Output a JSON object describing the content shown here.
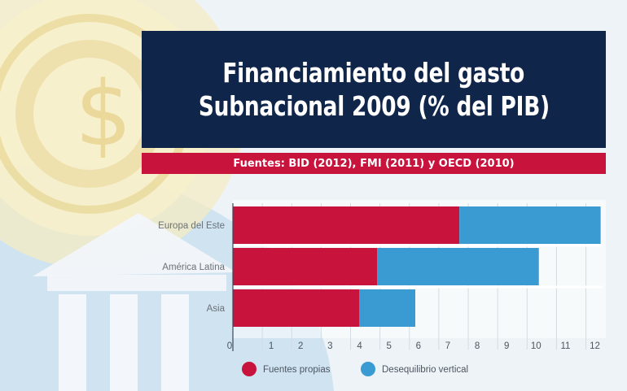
{
  "title": {
    "line1": "Financiamiento del gasto",
    "line2": "Subnacional  2009 (% del PIB)"
  },
  "source": "Fuentes: BID (2012), FMI (2011) y OECD (2010)",
  "colors": {
    "title_bg": "#10254a",
    "source_bg": "#c8143c",
    "series_own": "#c8143c",
    "series_vertical": "#3a9ad2"
  },
  "chart_data": {
    "type": "bar",
    "orientation": "horizontal",
    "stacked": true,
    "categories": [
      "Europa del Este",
      "América Latina",
      "Asia"
    ],
    "series": [
      {
        "name": "Fuentes propias",
        "values": [
          7.7,
          4.9,
          4.3
        ],
        "color": "#c8143c"
      },
      {
        "name": "Desequilibrio vertical",
        "values": [
          4.8,
          5.5,
          1.9
        ],
        "color": "#3a9ad2"
      }
    ],
    "xlim": [
      0,
      12.4
    ],
    "xticks": [
      0,
      1,
      2,
      3,
      4,
      5,
      6,
      7,
      8,
      9,
      10,
      11,
      12
    ],
    "grid": true,
    "legend_position": "bottom"
  }
}
